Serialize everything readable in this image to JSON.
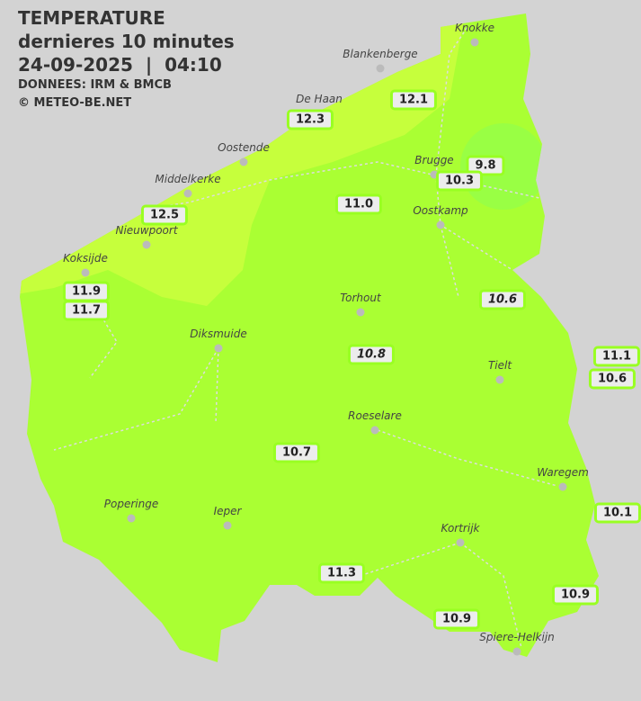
{
  "header": {
    "title": "TEMPERATURE",
    "subtitle": "dernieres 10 minutes",
    "datetime": "24-09-2025  |  04:10",
    "source": "DONNEES: IRM & BMCB",
    "copyright": "© METEO-BE.NET"
  },
  "colors": {
    "background": "#d3d3d3",
    "region_main": "#aaff33",
    "region_coast": "#c6ff3c",
    "region_cold": "#99ff44",
    "label_border": "#99ff22"
  },
  "cities": [
    {
      "name": "Knokke"
    },
    {
      "name": "Blankenberge"
    },
    {
      "name": "De Haan"
    },
    {
      "name": "Oostende"
    },
    {
      "name": "Middelkerke"
    },
    {
      "name": "Nieuwpoort"
    },
    {
      "name": "Koksijde"
    },
    {
      "name": "Brugge"
    },
    {
      "name": "Oostkamp"
    },
    {
      "name": "Torhout"
    },
    {
      "name": "Diksmuide"
    },
    {
      "name": "Tielt"
    },
    {
      "name": "Roeselare"
    },
    {
      "name": "Waregem"
    },
    {
      "name": "Poperinge"
    },
    {
      "name": "Ieper"
    },
    {
      "name": "Kortrijk"
    },
    {
      "name": "Spiere-Helkijn"
    }
  ],
  "readings": [
    {
      "value": "12.1"
    },
    {
      "value": "12.3"
    },
    {
      "value": "9.8"
    },
    {
      "value": "10.3"
    },
    {
      "value": "11.0"
    },
    {
      "value": "12.5"
    },
    {
      "value": "11.9"
    },
    {
      "value": "11.7"
    },
    {
      "value": "10.6",
      "italic": true
    },
    {
      "value": "10.8",
      "italic": true
    },
    {
      "value": "11.1"
    },
    {
      "value": "10.6"
    },
    {
      "value": "10.7"
    },
    {
      "value": "10.1"
    },
    {
      "value": "11.3"
    },
    {
      "value": "10.9"
    },
    {
      "value": "10.9"
    }
  ]
}
